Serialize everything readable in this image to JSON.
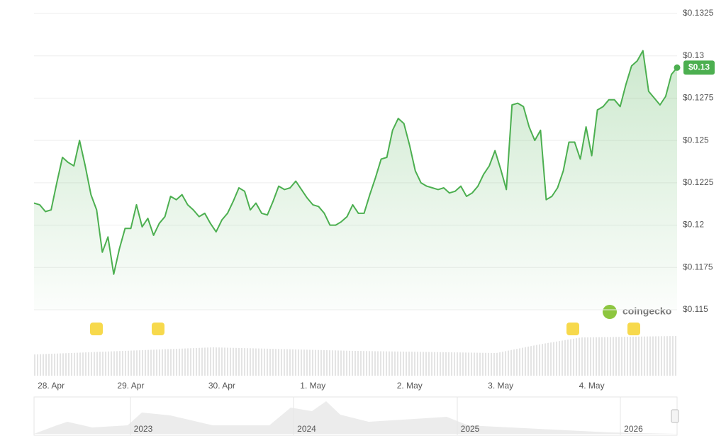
{
  "chart_data": {
    "type": "line",
    "color": "#4caf50",
    "grid": true,
    "ylim": [
      0.115,
      0.1325
    ],
    "yticks": [
      {
        "value": 0.1325,
        "label": "$0.1325"
      },
      {
        "value": 0.13,
        "label": "$0.13"
      },
      {
        "value": 0.1275,
        "label": "$0.1275"
      },
      {
        "value": 0.125,
        "label": "$0.125"
      },
      {
        "value": 0.1225,
        "label": "$0.1225"
      },
      {
        "value": 0.12,
        "label": "$0.12"
      },
      {
        "value": 0.1175,
        "label": "$0.1175"
      },
      {
        "value": 0.115,
        "label": "$0.115"
      }
    ],
    "categories": [
      null,
      null,
      null,
      "28. Apr",
      null,
      null,
      null,
      null,
      null,
      null,
      null,
      null,
      null,
      null,
      null,
      null,
      null,
      "29. Apr",
      null,
      null,
      null,
      null,
      null,
      null,
      null,
      null,
      null,
      null,
      null,
      null,
      null,
      null,
      null,
      "30. Apr",
      null,
      null,
      null,
      null,
      null,
      null,
      null,
      null,
      null,
      null,
      null,
      null,
      null,
      null,
      null,
      "1. May",
      null,
      null,
      null,
      null,
      null,
      null,
      null,
      null,
      null,
      null,
      null,
      null,
      null,
      null,
      null,
      null,
      "2. May",
      null,
      null,
      null,
      null,
      null,
      null,
      null,
      null,
      null,
      null,
      null,
      null,
      null,
      null,
      null,
      "3. May",
      null,
      null,
      null,
      null,
      null,
      null,
      null,
      null,
      null,
      null,
      null,
      null,
      null,
      null,
      null,
      "4. May",
      null,
      null,
      null,
      null,
      null,
      null,
      null,
      null,
      null,
      null,
      null,
      null,
      null,
      null,
      null
    ],
    "values": [
      0.1213,
      0.1212,
      0.1208,
      0.1209,
      0.1225,
      0.124,
      0.1237,
      0.1235,
      0.125,
      0.1235,
      0.1218,
      0.1209,
      0.1184,
      0.1193,
      0.1171,
      0.1186,
      0.1198,
      0.1198,
      0.1212,
      0.1199,
      0.1204,
      0.1194,
      0.1201,
      0.1205,
      0.1217,
      0.1215,
      0.1218,
      0.1212,
      0.1209,
      0.1205,
      0.1207,
      0.1201,
      0.1196,
      0.1203,
      0.1207,
      0.1214,
      0.1222,
      0.122,
      0.1209,
      0.1213,
      0.1207,
      0.1206,
      0.1214,
      0.1223,
      0.1221,
      0.1222,
      0.1226,
      0.1221,
      0.1216,
      0.1212,
      0.1211,
      0.1207,
      0.12,
      0.12,
      0.1202,
      0.1205,
      0.1212,
      0.1207,
      0.1207,
      0.1218,
      0.1228,
      0.1239,
      0.124,
      0.1256,
      0.1263,
      0.126,
      0.1247,
      0.1232,
      0.1225,
      0.1223,
      0.1222,
      0.1221,
      0.1222,
      0.1219,
      0.122,
      0.1223,
      0.1217,
      0.1219,
      0.1223,
      0.123,
      0.1235,
      0.1244,
      0.1233,
      0.1221,
      0.1271,
      0.1272,
      0.127,
      0.1258,
      0.125,
      0.1256,
      0.1215,
      0.1217,
      0.1222,
      0.1232,
      0.1249,
      0.1249,
      0.1239,
      0.1258,
      0.1241,
      0.1268,
      0.127,
      0.1274,
      0.1274,
      0.127,
      0.1283,
      0.1294,
      0.1297,
      0.1303,
      0.1279,
      0.1275,
      0.1271,
      0.1276,
      0.1289,
      0.1293
    ],
    "last_value_label": "$0.13",
    "watermark": "coingecko",
    "navigator_labels": [
      "2023",
      "2024",
      "2025",
      "2026"
    ]
  }
}
